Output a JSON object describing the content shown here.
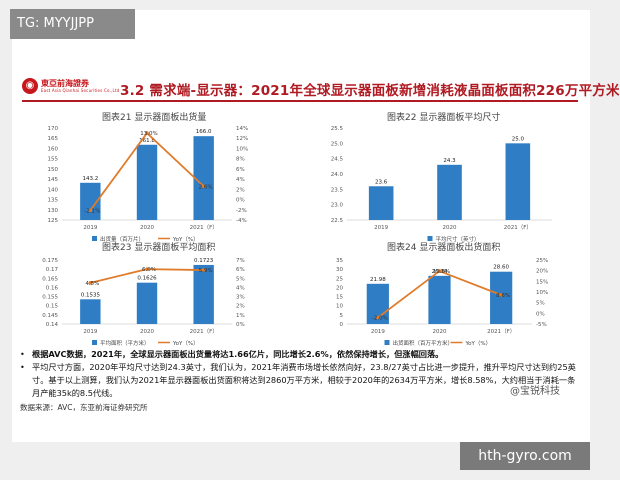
{
  "watermark_top": "TG: MYYJJPP",
  "watermark_bottom": "hth-gyro.com",
  "watermark_side": "@宝锐科技",
  "header": {
    "logo_name": "東亞前海證券",
    "logo_sub": "East Asia Qianhai Securities Co.,Ltd",
    "title": "3.2 需求端-显示器：2021年全球显示器面板新增消耗液晶面板面积226万平方米"
  },
  "chart_data": [
    {
      "type": "bar",
      "title": "图表21 显示器面板出货量",
      "categories": [
        "2019",
        "2020",
        "2021（F）"
      ],
      "series": [
        {
          "name": "出货量（百万片）",
          "type": "bar",
          "values": [
            143.2,
            161.8,
            166.0
          ],
          "labels": [
            "143.2",
            "161.8",
            "166.0"
          ]
        },
        {
          "name": "YoY（%）",
          "type": "line",
          "values": [
            -2.1,
            13.0,
            2.6
          ],
          "labels": [
            "-2.1%",
            "13.0%",
            "2.6%"
          ]
        }
      ],
      "yleft": {
        "ticks": [
          "125",
          "130",
          "135",
          "140",
          "145",
          "150",
          "155",
          "160",
          "165",
          "170"
        ],
        "ylim": [
          125,
          170
        ]
      },
      "yright": {
        "ticks": [
          "-4%",
          "-2%",
          "0%",
          "2%",
          "4%",
          "6%",
          "8%",
          "10%",
          "12%",
          "14%"
        ],
        "ylim": [
          -4,
          14
        ]
      }
    },
    {
      "type": "bar",
      "title": "图表22 显示器面板平均尺寸",
      "categories": [
        "2019",
        "2020",
        "2021（F）"
      ],
      "series": [
        {
          "name": "平均尺寸（英寸）",
          "type": "bar",
          "values": [
            23.6,
            24.3,
            25.0
          ],
          "labels": [
            "23.6",
            "24.3",
            "25.0"
          ]
        }
      ],
      "yleft": {
        "ticks": [
          "22.5",
          "23.0",
          "23.5",
          "24.0",
          "24.5",
          "25.0",
          "25.5"
        ],
        "ylim": [
          22.5,
          25.5
        ]
      }
    },
    {
      "type": "bar",
      "title": "图表23 显示器面板平均面积",
      "categories": [
        "2019",
        "2020",
        "2021（F）"
      ],
      "series": [
        {
          "name": "平均面积（平方米）",
          "type": "bar",
          "values": [
            0.1535,
            0.1626,
            0.1723
          ],
          "labels": [
            "0.1535",
            "0.1626",
            "0.1723"
          ]
        },
        {
          "name": "YoY（%）",
          "type": "line",
          "values": [
            4.5,
            6.0,
            5.9
          ],
          "labels": [
            "4.5%",
            "6.0%",
            "5.9%"
          ]
        }
      ],
      "yleft": {
        "ticks": [
          "0.14",
          "0.145",
          "0.15",
          "0.155",
          "0.16",
          "0.165",
          "0.17",
          "0.175"
        ],
        "ylim": [
          0.14,
          0.175
        ]
      },
      "yright": {
        "ticks": [
          "0%",
          "1%",
          "2%",
          "3%",
          "4%",
          "5%",
          "6%",
          "7%"
        ],
        "ylim": [
          0,
          7
        ]
      }
    },
    {
      "type": "bar",
      "title": "图表24 显示器面板出货面积",
      "categories": [
        "2019",
        "2020",
        "2021（F）"
      ],
      "series": [
        {
          "name": "出货面积（百万平方米）",
          "type": "bar",
          "values": [
            21.98,
            26.34,
            28.6
          ],
          "labels": [
            "21.98",
            "26.34",
            "28.60"
          ]
        },
        {
          "name": "YoY（%）",
          "type": "line",
          "values": [
            -2.0,
            19.8,
            8.6
          ],
          "labels": [
            "-2.0%",
            "19.8%",
            "8.6%"
          ]
        }
      ],
      "yleft": {
        "ticks": [
          "0",
          "5",
          "10",
          "15",
          "20",
          "25",
          "30",
          "35"
        ],
        "ylim": [
          0,
          35
        ]
      },
      "yright": {
        "ticks": [
          "-5%",
          "0%",
          "5%",
          "10%",
          "15%",
          "20%",
          "25%"
        ],
        "ylim": [
          -5,
          25
        ]
      }
    }
  ],
  "colors": {
    "bar": "#2e7dc5",
    "line": "#e07b2a",
    "title_red": "#b01a22"
  },
  "notes": [
    "根据AVC数据，2021年，全球显示器面板出货量将达1.66亿片，同比增长2.6%，依然保持增长，但涨幅回落。",
    "平均尺寸方面，2020年平均尺寸达到24.3英寸，我们认为，2021年消费市场增长依然向好，23.8/27英寸占比进一步提升，推升平均尺寸达到约25英寸。基于以上测算，我们认为2021年显示器面板出货面积将达到2860万平方米，相较于2020年的2634万平方米，增长8.58%，大约相当于消耗一条月产能35k的8.5代线。"
  ],
  "source": "数据来源：AVC，东亚前海证券研究所"
}
